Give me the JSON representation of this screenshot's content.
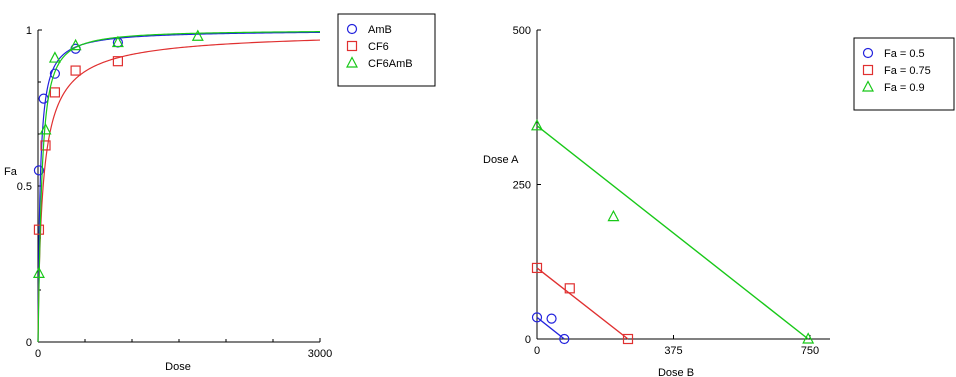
{
  "chart_data": [
    {
      "type": "scatter",
      "title": "",
      "xlabel": "Dose",
      "ylabel": "Fa",
      "xlim": [
        0,
        3000
      ],
      "ylim": [
        0,
        1
      ],
      "x_ticks": [
        0,
        3000
      ],
      "x_tick_labels": [
        "0",
        "3000"
      ],
      "y_ticks": [
        0,
        0.5,
        1
      ],
      "y_tick_labels": [
        "0",
        "0.5",
        "1"
      ],
      "grid": false,
      "legend_position": "right",
      "series": [
        {
          "name": "AmB",
          "marker": "circle",
          "color": "#2222dd",
          "points": [
            [
              10,
              0.55
            ],
            [
              60,
              0.78
            ],
            [
              180,
              0.86
            ],
            [
              400,
              0.94
            ],
            [
              850,
              0.96
            ]
          ],
          "fit": {
            "dm": 23,
            "m": 1.0
          }
        },
        {
          "name": "CF6",
          "marker": "square",
          "color": "#e03030",
          "points": [
            [
              10,
              0.36
            ],
            [
              80,
              0.63
            ],
            [
              180,
              0.8
            ],
            [
              400,
              0.87
            ],
            [
              850,
              0.9
            ]
          ],
          "fit": {
            "dm": 55,
            "m": 0.85
          }
        },
        {
          "name": "CF6AmB",
          "marker": "triangle",
          "color": "#18c818",
          "points": [
            [
              10,
              0.22
            ],
            [
              80,
              0.68
            ],
            [
              180,
              0.91
            ],
            [
              400,
              0.95
            ],
            [
              850,
              0.96
            ],
            [
              1700,
              0.98
            ]
          ],
          "fit": {
            "dm": 38,
            "m": 1.2
          }
        }
      ]
    },
    {
      "type": "scatter",
      "title": "",
      "xlabel": "Dose B",
      "ylabel": "Dose A",
      "xlim": [
        0,
        750
      ],
      "ylim": [
        0,
        500
      ],
      "x_ticks": [
        0,
        375,
        750
      ],
      "x_tick_labels": [
        "0",
        "375",
        "750"
      ],
      "y_ticks": [
        0,
        250,
        500
      ],
      "y_tick_labels": [
        "0",
        "250",
        "500"
      ],
      "grid": false,
      "legend_position": "right",
      "series": [
        {
          "name": "Fa = 0.5",
          "marker": "circle",
          "color": "#2222dd",
          "points": [
            [
              0,
              35
            ],
            [
              40,
              33
            ],
            [
              75,
              0
            ]
          ],
          "line": [
            [
              0,
              35
            ],
            [
              75,
              0
            ]
          ]
        },
        {
          "name": "Fa = 0.75",
          "marker": "square",
          "color": "#e03030",
          "points": [
            [
              0,
              115
            ],
            [
              90,
              82
            ],
            [
              250,
              0
            ]
          ],
          "line": [
            [
              0,
              115
            ],
            [
              250,
              0
            ]
          ]
        },
        {
          "name": "Fa = 0.9",
          "marker": "triangle",
          "color": "#18c818",
          "points": [
            [
              0,
              345
            ],
            [
              210,
              198
            ],
            [
              745,
              0
            ]
          ],
          "line": [
            [
              0,
              345
            ],
            [
              745,
              0
            ]
          ]
        }
      ]
    }
  ]
}
